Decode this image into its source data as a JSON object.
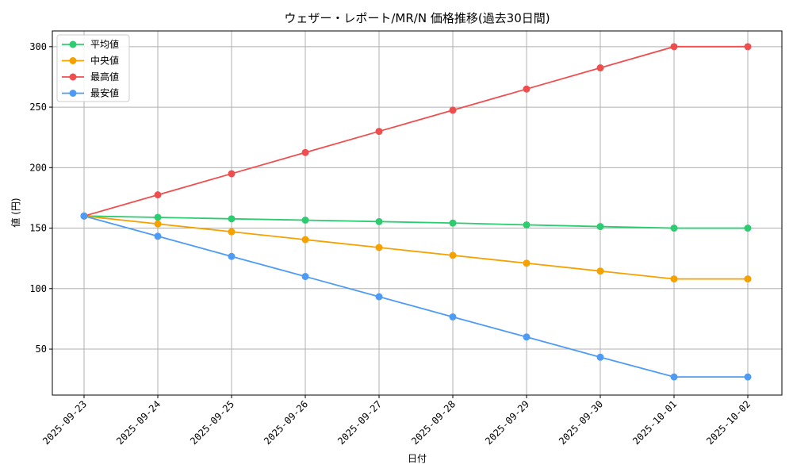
{
  "chart_data": {
    "type": "line",
    "title": "ウェザー・レポート/MR/N 価格推移(過去30日間)",
    "xlabel": "日付",
    "ylabel": "値 (円)",
    "categories": [
      "2025-09-23",
      "2025-09-24",
      "2025-09-25",
      "2025-09-26",
      "2025-09-27",
      "2025-09-28",
      "2025-09-29",
      "2025-09-30",
      "2025-10-01",
      "2025-10-02"
    ],
    "ylim": [
      12,
      313
    ],
    "yticks": [
      50,
      100,
      150,
      200,
      250,
      300
    ],
    "grid": true,
    "legend_position": "top-left",
    "series": [
      {
        "name": "平均値",
        "color": "#2ecc71",
        "values": [
          160,
          158.9,
          157.7,
          156.6,
          155.4,
          154.2,
          152.7,
          151.3,
          150,
          150
        ]
      },
      {
        "name": "中央値",
        "color": "#f5a100",
        "values": [
          160,
          153.5,
          147,
          140.5,
          134,
          127.5,
          121,
          114.5,
          108,
          108
        ]
      },
      {
        "name": "最高値",
        "color": "#ef4e4e",
        "values": [
          160,
          177.5,
          195,
          212.5,
          230,
          247.5,
          265,
          282.5,
          300,
          300
        ]
      },
      {
        "name": "最安値",
        "color": "#4d9bf5",
        "values": [
          160,
          143.3,
          126.6,
          110,
          93.3,
          76.6,
          60,
          43.3,
          27,
          27
        ]
      }
    ]
  }
}
